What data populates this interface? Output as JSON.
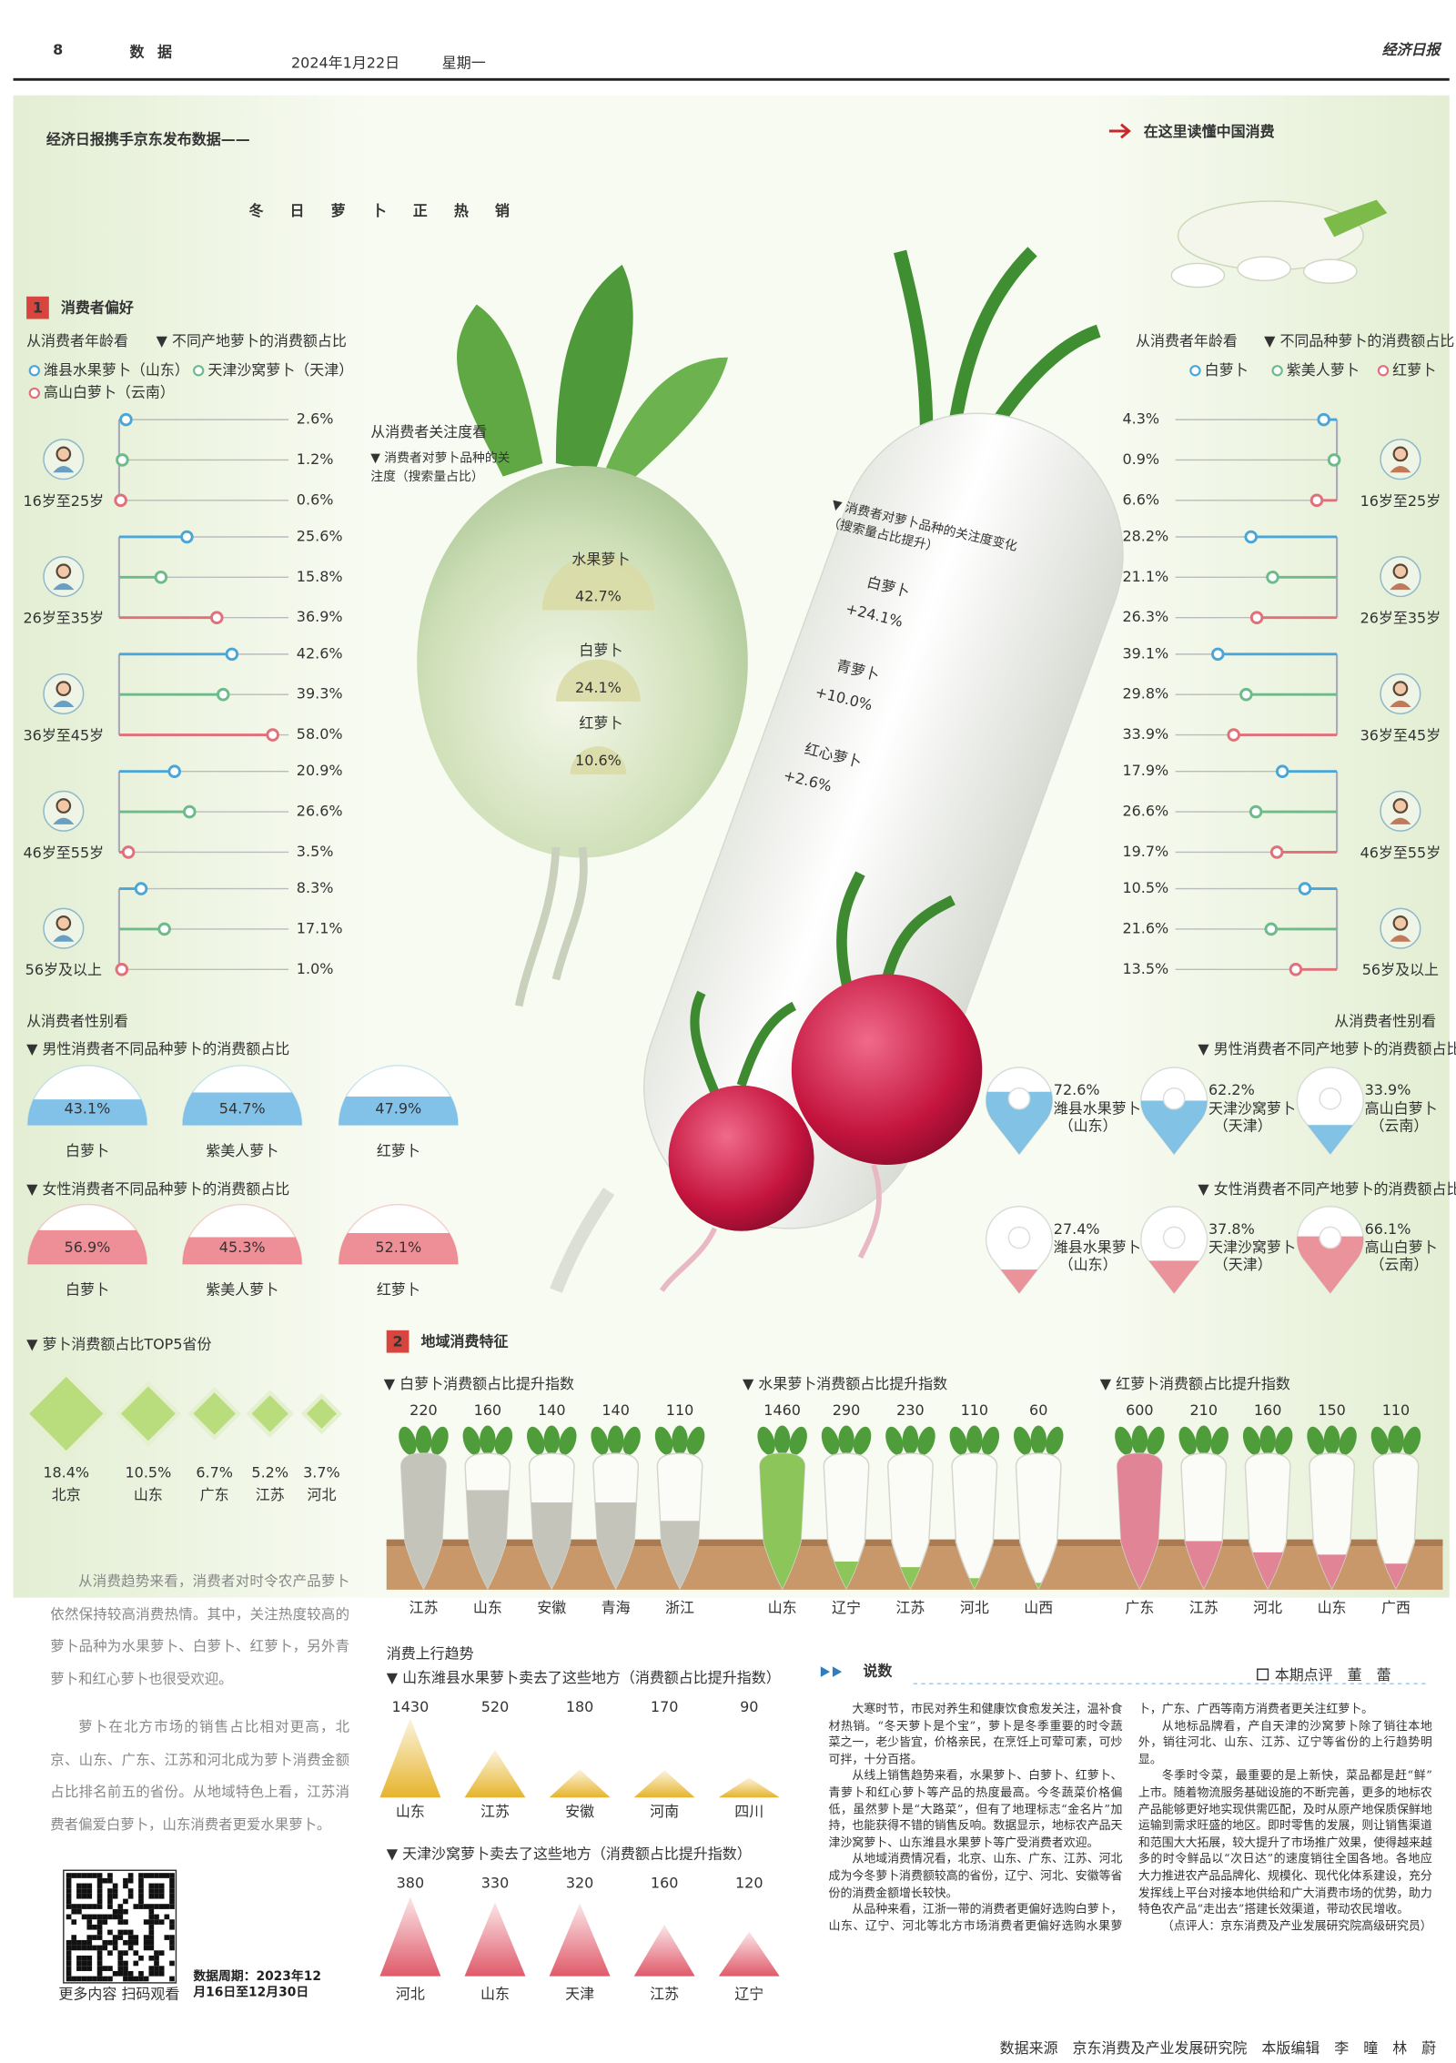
{
  "header": {
    "page_number": "8",
    "section": "数据",
    "date": "2024年1月22日",
    "weekday": "星期一",
    "masthead": "经济日报"
  },
  "kicker": "经济日报携手京东发布数据——",
  "title": "冬日萝卜正热销",
  "column_tag": "在这里读懂中国消费",
  "section1": {
    "number": "1",
    "title": "消费者偏好"
  },
  "age_by_origin": {
    "heading": "从消费者年龄看",
    "subtitle": "▼ 不同产地萝卜的消费额占比",
    "groups": [
      "16岁至25岁",
      "26岁至35岁",
      "36岁至45岁",
      "46岁至55岁",
      "56岁及以上"
    ],
    "series": [
      {
        "name": "潍县水果萝卜（山东）",
        "color": "#4aa6d8",
        "values": [
          2.6,
          25.6,
          42.6,
          20.9,
          8.3
        ],
        "value_labels": [
          "2.6%",
          "25.6%",
          "42.6%",
          "20.9%",
          "8.3%"
        ]
      },
      {
        "name": "天津沙窝萝卜（天津）",
        "color": "#6dbb8a",
        "values": [
          1.2,
          15.8,
          39.3,
          26.6,
          17.1
        ],
        "value_labels": [
          "1.2%",
          "15.8%",
          "39.3%",
          "26.6%",
          "17.1%"
        ]
      },
      {
        "name": "高山白萝卜（云南）",
        "color": "#e0707a",
        "values": [
          0.6,
          36.9,
          58.0,
          3.5,
          1.0
        ],
        "value_labels": [
          "0.6%",
          "36.9%",
          "58.0%",
          "3.5%",
          "1.0%"
        ]
      }
    ]
  },
  "age_by_variety": {
    "heading": "从消费者年龄看",
    "subtitle": "▼ 不同品种萝卜的消费额占比",
    "groups": [
      "16岁至25岁",
      "26岁至35岁",
      "36岁至45岁",
      "46岁至55岁",
      "56岁及以上"
    ],
    "series": [
      {
        "name": "白萝卜",
        "color": "#4aa6d8",
        "values": [
          4.3,
          28.2,
          39.1,
          17.9,
          10.5
        ],
        "value_labels": [
          "4.3%",
          "28.2%",
          "39.1%",
          "17.9%",
          "10.5%"
        ]
      },
      {
        "name": "紫美人萝卜",
        "color": "#6dbb8a",
        "values": [
          0.9,
          21.1,
          29.8,
          26.6,
          21.6
        ],
        "value_labels": [
          "0.9%",
          "21.1%",
          "29.8%",
          "26.6%",
          "21.6%"
        ]
      },
      {
        "name": "红萝卜",
        "color": "#e0707a",
        "values": [
          6.6,
          26.3,
          33.9,
          19.7,
          13.5
        ],
        "value_labels": [
          "6.6%",
          "26.3%",
          "33.9%",
          "19.7%",
          "13.5%"
        ]
      }
    ]
  },
  "attention": {
    "heading": "从消费者关注度看",
    "subtitle": "▼ 消费者对萝卜品种的关注度（搜索量占比）",
    "categories": [
      "水果萝卜",
      "白萝卜",
      "红萝卜"
    ],
    "values": [
      42.7,
      24.1,
      10.6
    ],
    "value_labels": [
      "42.7%",
      "24.1%",
      "10.6%"
    ],
    "color": "#d9dba6"
  },
  "attention_change": {
    "subtitle": "▼ 消费者对萝卜品种的关注度变化（搜索量占比提升）",
    "categories": [
      "白萝卜",
      "青萝卜",
      "红心萝卜"
    ],
    "values": [
      "+24.1%",
      "+10.0%",
      "+2.6%"
    ]
  },
  "gender_by_variety": {
    "heading": "从消费者性别看",
    "categories": [
      "白萝卜",
      "紫美人萝卜",
      "红萝卜"
    ],
    "series": [
      {
        "name": "▼ 男性消费者不同品种萝卜的消费额占比",
        "color": "#5aaee0",
        "values": [
          43.1,
          54.7,
          47.9
        ],
        "value_labels": [
          "43.1%",
          "54.7%",
          "47.9%"
        ]
      },
      {
        "name": "▼ 女性消费者不同品种萝卜的消费额占比",
        "color": "#e86a74",
        "values": [
          56.9,
          45.3,
          52.1
        ],
        "value_labels": [
          "56.9%",
          "45.3%",
          "52.1%"
        ]
      }
    ]
  },
  "gender_by_origin": {
    "heading": "从消费者性别看",
    "categories": [
      "潍县水果萝卜",
      "天津沙窝萝卜",
      "高山白萝卜"
    ],
    "regions": [
      "（山东）",
      "（天津）",
      "（云南）"
    ],
    "series": [
      {
        "name": "▼ 男性消费者不同产地萝卜的消费额占比",
        "color": "#6cb8e0",
        "values": [
          72.6,
          62.2,
          33.9
        ],
        "value_labels": [
          "72.6%",
          "62.2%",
          "33.9%"
        ]
      },
      {
        "name": "▼ 女性消费者不同产地萝卜的消费额占比",
        "color": "#e8808a",
        "values": [
          27.4,
          37.8,
          66.1
        ],
        "value_labels": [
          "27.4%",
          "37.8%",
          "66.1%"
        ]
      }
    ]
  },
  "top5": {
    "subtitle": "▼ 萝卜消费额占比TOP5省份",
    "categories": [
      "北京",
      "山东",
      "广东",
      "江苏",
      "河北"
    ],
    "values": [
      18.4,
      10.5,
      6.7,
      5.2,
      3.7
    ],
    "value_labels": [
      "18.4%",
      "10.5%",
      "6.7%",
      "5.2%",
      "3.7%"
    ],
    "color": "#b9dc7c"
  },
  "summary": [
    "从消费趋势来看，消费者对时令农产品萝卜依然保持较高消费热情。其中，关注热度较高的萝卜品种为水果萝卜、白萝卜、红萝卜，另外青萝卜和红心萝卜也很受欢迎。",
    "萝卜在北方市场的销售占比相对更高，北京、山东、广东、江苏和河北成为萝卜消费金额占比排名前五的省份。从地域特色上看，江苏消费者偏爱白萝卜，山东消费者更爱水果萝卜。"
  ],
  "qr_caption": "更多内容 扫码观看",
  "data_period": "数据周期：2023年12月16日至12月30日",
  "section2": {
    "number": "2",
    "title": "地域消费特征"
  },
  "index_charts": [
    {
      "subtitle": "▼ 白萝卜消费额占比提升指数",
      "categories": [
        "江苏",
        "山东",
        "安徽",
        "青海",
        "浙江"
      ],
      "values": [
        220,
        160,
        140,
        140,
        110
      ],
      "color": "#c4c4bb"
    },
    {
      "subtitle": "▼ 水果萝卜消费额占比提升指数",
      "categories": [
        "山东",
        "辽宁",
        "江苏",
        "河北",
        "山西"
      ],
      "values": [
        1460,
        290,
        230,
        110,
        60
      ],
      "color": "#8cc65a"
    },
    {
      "subtitle": "▼ 红萝卜消费额占比提升指数",
      "categories": [
        "广东",
        "江苏",
        "河北",
        "山东",
        "广西"
      ],
      "values": [
        600,
        210,
        160,
        150,
        110
      ],
      "color": "#e08496"
    }
  ],
  "trend": {
    "heading": "消费上行趋势",
    "charts": [
      {
        "subtitle": "▼ 山东潍县水果萝卜卖去了这些地方（消费额占比提升指数）",
        "categories": [
          "山东",
          "江苏",
          "安徽",
          "河南",
          "四川"
        ],
        "values": [
          1430,
          520,
          180,
          170,
          90
        ],
        "color": "#e6b42c"
      },
      {
        "subtitle": "▼ 天津沙窝萝卜卖去了这些地方（消费额占比提升指数）",
        "categories": [
          "河北",
          "山东",
          "天津",
          "江苏",
          "辽宁"
        ],
        "values": [
          380,
          330,
          320,
          160,
          120
        ],
        "color": "#e05a6a"
      }
    ]
  },
  "commentary": {
    "title": "说数",
    "byline": "本期点评　董　蕾",
    "paragraphs": [
      "大寒时节，市民对养生和健康饮食愈发关注，温补食材热销。“冬天萝卜是个宝”，萝卜是冬季重要的时令蔬菜之一，老少皆宜，价格亲民，在烹饪上可荤可素，可炒可拌，十分百搭。",
      "从线上销售趋势来看，水果萝卜、白萝卜、红萝卜、青萝卜和红心萝卜等产品的热度最高。今冬蔬菜价格偏低，虽然萝卜是“大路菜”，但有了地理标志“金名片”加持，也能获得不错的销售反响。数据显示，地标农产品天津沙窝萝卜、山东潍县水果萝卜等广受消费者欢迎。",
      "从地域消费情况看，北京、山东、广东、江苏、河北成为今冬萝卜消费额较高的省份，辽宁、河北、安徽等省份的消费金额增长较快。",
      "从品种来看，江浙一带的消费者更偏好选购白萝卜，山东、辽宁、河北等北方市场消费者更偏好选购水果萝卜，广东、广西等南方消费者更关注红萝卜。",
      "从地标品牌看，产自天津的沙窝萝卜除了销往本地外，销往河北、山东、江苏、辽宁等省份的上行趋势明显。",
      "冬季时令菜，最重要的是上新快，菜品都是赶“鲜”上市。随着物流服务基础设施的不断完善，更多的地标农产品能够更好地实现供需匹配，及时从原产地保质保鲜地运输到需求旺盛的地区。即时零售的发展，则让销售渠道和范围大大拓展，较大提升了市场推广效果，使得越来越多的时令鲜品以“次日达”的速度销往全国各地。各地应大力推进农产品品牌化、规模化、现代化体系建设，充分发挥线上平台对接本地供给和广大消费市场的优势，助力特色农产品“走出去”搭建长效渠道，带动农民增收。",
      "（点评人：京东消费及产业发展研究院高级研究员）"
    ]
  },
  "footer": "数据来源　京东消费及产业发展研究院　本版编辑　李　曈　林　蔚"
}
